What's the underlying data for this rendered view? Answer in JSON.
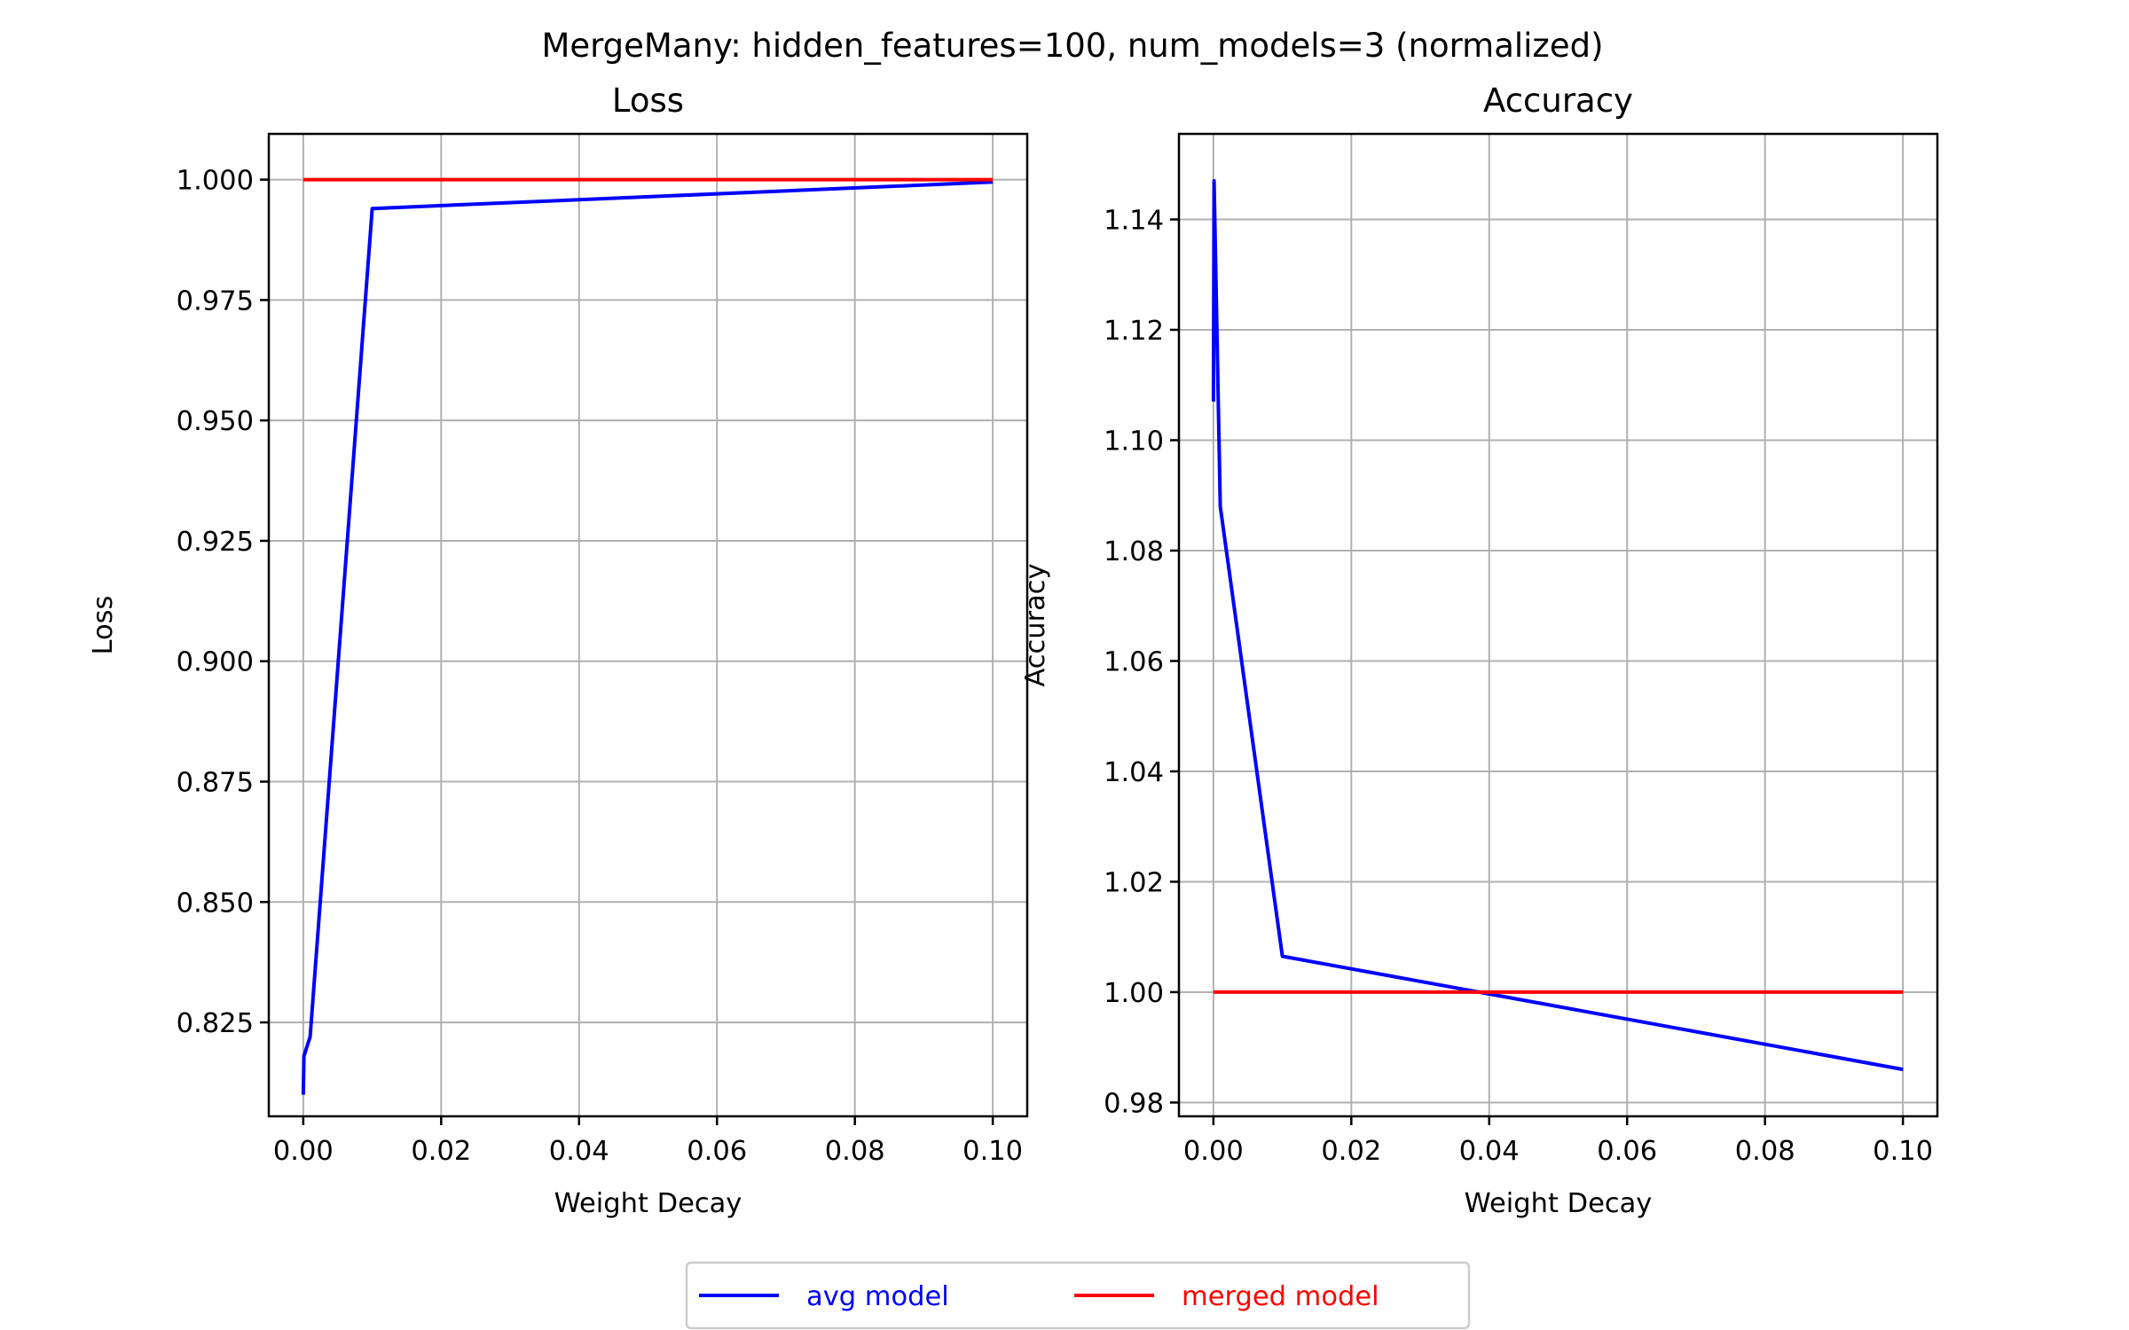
{
  "figure": {
    "suptitle": "MergeMany: hidden_features=100, num_models=3 (normalized)"
  },
  "legend": {
    "placement": "bottom-center",
    "entries": [
      {
        "label": "avg model",
        "color": "#0000ff"
      },
      {
        "label": "merged model",
        "color": "#ff0000"
      }
    ]
  },
  "chart_data": [
    {
      "type": "line",
      "title": "Loss",
      "xlabel": "Weight Decay",
      "ylabel": "Loss",
      "xlim": [
        -0.005,
        0.105
      ],
      "ylim": [
        0.8055,
        1.0095
      ],
      "xticks": [
        0.0,
        0.02,
        0.04,
        0.06,
        0.08,
        0.1
      ],
      "xtick_labels": [
        "0.00",
        "0.02",
        "0.04",
        "0.06",
        "0.08",
        "0.10"
      ],
      "yticks": [
        0.825,
        0.85,
        0.875,
        0.9,
        0.925,
        0.95,
        0.975,
        1.0
      ],
      "ytick_labels": [
        "0.825",
        "0.850",
        "0.875",
        "0.900",
        "0.925",
        "0.950",
        "0.975",
        "1.000"
      ],
      "grid": true,
      "series": [
        {
          "name": "avg model",
          "color": "#0000ff",
          "x": [
            0.0,
            0.0001,
            0.001,
            0.01,
            0.1
          ],
          "y": [
            0.81,
            0.818,
            0.822,
            0.994,
            0.9995
          ]
        },
        {
          "name": "merged model",
          "color": "#ff0000",
          "x": [
            0.0,
            0.0001,
            0.001,
            0.01,
            0.1
          ],
          "y": [
            1.0,
            1.0,
            1.0,
            1.0,
            1.0
          ]
        }
      ]
    },
    {
      "type": "line",
      "title": "Accuracy",
      "xlabel": "Weight Decay",
      "ylabel": "Accuracy",
      "xlim": [
        -0.005,
        0.105
      ],
      "ylim": [
        0.9775,
        1.1555
      ],
      "xticks": [
        0.0,
        0.02,
        0.04,
        0.06,
        0.08,
        0.1
      ],
      "xtick_labels": [
        "0.00",
        "0.02",
        "0.04",
        "0.06",
        "0.08",
        "0.10"
      ],
      "yticks": [
        0.98,
        1.0,
        1.02,
        1.04,
        1.06,
        1.08,
        1.1,
        1.12,
        1.14
      ],
      "ytick_labels": [
        "0.98",
        "1.00",
        "1.02",
        "1.04",
        "1.06",
        "1.08",
        "1.10",
        "1.12",
        "1.14"
      ],
      "grid": true,
      "series": [
        {
          "name": "avg model",
          "color": "#0000ff",
          "x": [
            0.0,
            0.0001,
            0.001,
            0.01,
            0.1
          ],
          "y": [
            1.107,
            1.147,
            1.088,
            1.0065,
            0.986
          ]
        },
        {
          "name": "merged model",
          "color": "#ff0000",
          "x": [
            0.0,
            0.0001,
            0.001,
            0.01,
            0.1
          ],
          "y": [
            1.0,
            1.0,
            1.0,
            1.0,
            1.0
          ]
        }
      ]
    }
  ]
}
